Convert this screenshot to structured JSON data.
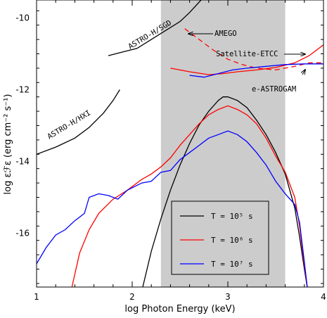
{
  "chart_data": {
    "type": "line",
    "xlabel": "log Photon Energy (keV)",
    "ylabel": "log εℱε (erg cm⁻² s⁻¹)",
    "xlim": [
      1,
      4
    ],
    "ylim": [
      -17.5,
      -9.5
    ],
    "x_ticks": [
      "1",
      "2",
      "3",
      "4"
    ],
    "y_ticks": [
      "-10",
      "-12",
      "-14",
      "-16"
    ],
    "shaded_band": {
      "x": [
        2.3,
        3.6
      ],
      "color": "#cccccc"
    },
    "series": [
      {
        "name": "T = 10⁵ s",
        "color": "#000000",
        "x": [
          2.11,
          2.2,
          2.3,
          2.4,
          2.5,
          2.6,
          2.7,
          2.8,
          2.9,
          2.95,
          3.0,
          3.1,
          3.2,
          3.3,
          3.4,
          3.5,
          3.6,
          3.7,
          3.75,
          3.8,
          3.83
        ],
        "y": [
          -17.5,
          -16.5,
          -15.6,
          -14.8,
          -14.1,
          -13.5,
          -12.98,
          -12.6,
          -12.3,
          -12.2,
          -12.2,
          -12.3,
          -12.5,
          -12.85,
          -13.25,
          -13.75,
          -14.35,
          -15.3,
          -16.1,
          -17.0,
          -17.5
        ]
      },
      {
        "name": "T = 10⁶ s",
        "color": "#ff0000",
        "x": [
          1.37,
          1.45,
          1.55,
          1.65,
          1.8,
          1.95,
          2.1,
          2.2,
          2.3,
          2.4,
          2.5,
          2.6,
          2.7,
          2.8,
          2.9,
          3.0,
          3.1,
          3.2,
          3.3,
          3.4,
          3.5,
          3.6,
          3.7,
          3.75,
          3.8,
          3.83
        ],
        "y": [
          -17.5,
          -16.55,
          -15.9,
          -15.45,
          -15.05,
          -14.8,
          -14.5,
          -14.35,
          -14.15,
          -13.9,
          -13.55,
          -13.25,
          -12.95,
          -12.7,
          -12.55,
          -12.45,
          -12.55,
          -12.7,
          -12.95,
          -13.35,
          -13.85,
          -14.3,
          -15.0,
          -15.8,
          -16.9,
          -17.5
        ]
      },
      {
        "name": "T = 10⁷ s",
        "color": "#0000ff",
        "x": [
          1.0,
          1.1,
          1.2,
          1.3,
          1.4,
          1.5,
          1.55,
          1.65,
          1.75,
          1.85,
          1.95,
          2.1,
          2.2,
          2.3,
          2.4,
          2.5,
          2.6,
          2.7,
          2.8,
          2.9,
          3.0,
          3.1,
          3.2,
          3.3,
          3.4,
          3.5,
          3.6,
          3.7,
          3.75,
          3.8,
          3.83
        ],
        "y": [
          -16.85,
          -16.4,
          -16.05,
          -15.9,
          -15.65,
          -15.45,
          -15.0,
          -14.9,
          -14.95,
          -15.05,
          -14.8,
          -14.6,
          -14.55,
          -14.3,
          -14.25,
          -13.95,
          -13.75,
          -13.55,
          -13.35,
          -13.25,
          -13.15,
          -13.25,
          -13.45,
          -13.75,
          -14.1,
          -14.55,
          -14.9,
          -15.2,
          -15.7,
          -16.8,
          -17.5
        ]
      },
      {
        "name": "ASTRO-H/HXI",
        "color": "#000000",
        "x": [
          1.0,
          1.2,
          1.4,
          1.55,
          1.7,
          1.8,
          1.87
        ],
        "y": [
          -13.8,
          -13.6,
          -13.35,
          -13.05,
          -12.65,
          -12.3,
          -12.0
        ]
      },
      {
        "name": "ASTRO-H/SGD",
        "color": "#000000",
        "x": [
          1.75,
          1.9,
          2.05,
          2.2,
          2.35,
          2.5,
          2.6,
          2.72
        ],
        "y": [
          -11.05,
          -10.95,
          -10.85,
          -10.6,
          -10.35,
          -10.1,
          -9.85,
          -9.5
        ]
      },
      {
        "name": "Satellite-ETCC",
        "color": "#ff0000",
        "x": [
          2.4,
          2.6,
          2.8,
          2.95,
          3.1,
          3.3,
          3.5,
          3.7,
          3.85,
          4.0
        ],
        "y": [
          -11.4,
          -11.5,
          -11.58,
          -11.55,
          -11.5,
          -11.45,
          -11.38,
          -11.25,
          -11.05,
          -10.75
        ]
      },
      {
        "name": "AMEGO",
        "color": "#ff0000",
        "dashed": true,
        "x": [
          2.55,
          2.7,
          2.85,
          3.0,
          3.15,
          3.3,
          3.5,
          3.7,
          3.85,
          4.0
        ],
        "y": [
          -10.3,
          -10.6,
          -10.9,
          -11.15,
          -11.3,
          -11.4,
          -11.45,
          -11.35,
          -11.25,
          -11.25
        ]
      },
      {
        "name": "e-ASTROGAM",
        "color": "#0000ff",
        "x": [
          2.6,
          2.75,
          2.9,
          3.05,
          3.2,
          3.4,
          3.6,
          3.8,
          4.0
        ],
        "y": [
          -11.6,
          -11.65,
          -11.55,
          -11.45,
          -11.4,
          -11.35,
          -11.3,
          -11.28,
          -11.28
        ]
      }
    ],
    "annotations": [
      {
        "text": "AMEGO"
      },
      {
        "text": "Satellite-ETCC"
      },
      {
        "text": "e-ASTROGAM"
      },
      {
        "text": "ASTRO-H/SGD"
      },
      {
        "text": "ASTRO-H/HXI"
      }
    ],
    "legend": {
      "placement": "bottom-center",
      "entries": [
        {
          "label": "T = 10⁵ s",
          "color": "#000000"
        },
        {
          "label": "T = 10⁶ s",
          "color": "#ff0000"
        },
        {
          "label": "T = 10⁷ s",
          "color": "#0000ff"
        }
      ]
    }
  }
}
